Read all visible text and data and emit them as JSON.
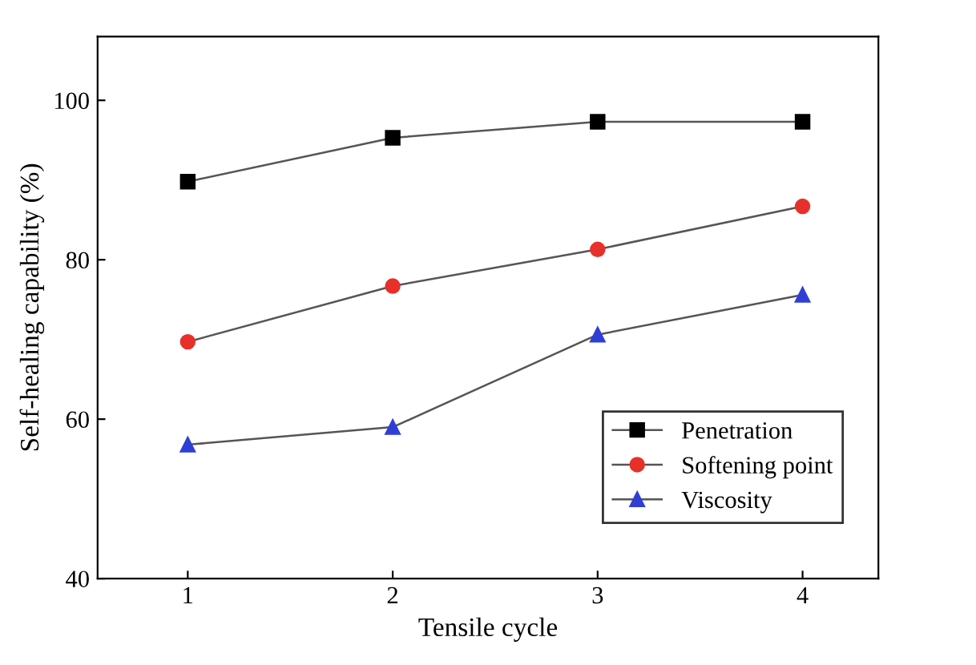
{
  "chart_data": {
    "type": "line",
    "xlabel": "Tensile cycle",
    "ylabel": "Self-healing capability (%)",
    "x": [
      1,
      2,
      3,
      4
    ],
    "xlim": [
      0.56,
      4.37
    ],
    "xticks": [
      1,
      2,
      3,
      4
    ],
    "ylim": [
      40,
      108
    ],
    "yticks": [
      40,
      60,
      80,
      100
    ],
    "grid": false,
    "legend": "bottom right",
    "series": [
      {
        "name": "Penetration",
        "color": "#000000",
        "marker": "square",
        "values": [
          89.8,
          95.3,
          97.3,
          97.3
        ]
      },
      {
        "name": "Softening point",
        "color": "#e8302a",
        "marker": "circle",
        "values": [
          69.7,
          76.7,
          81.3,
          86.7
        ]
      },
      {
        "name": "Viscosity",
        "color": "#2f3fd6",
        "marker": "triangle",
        "values": [
          56.8,
          59.0,
          70.6,
          75.6
        ]
      }
    ]
  }
}
